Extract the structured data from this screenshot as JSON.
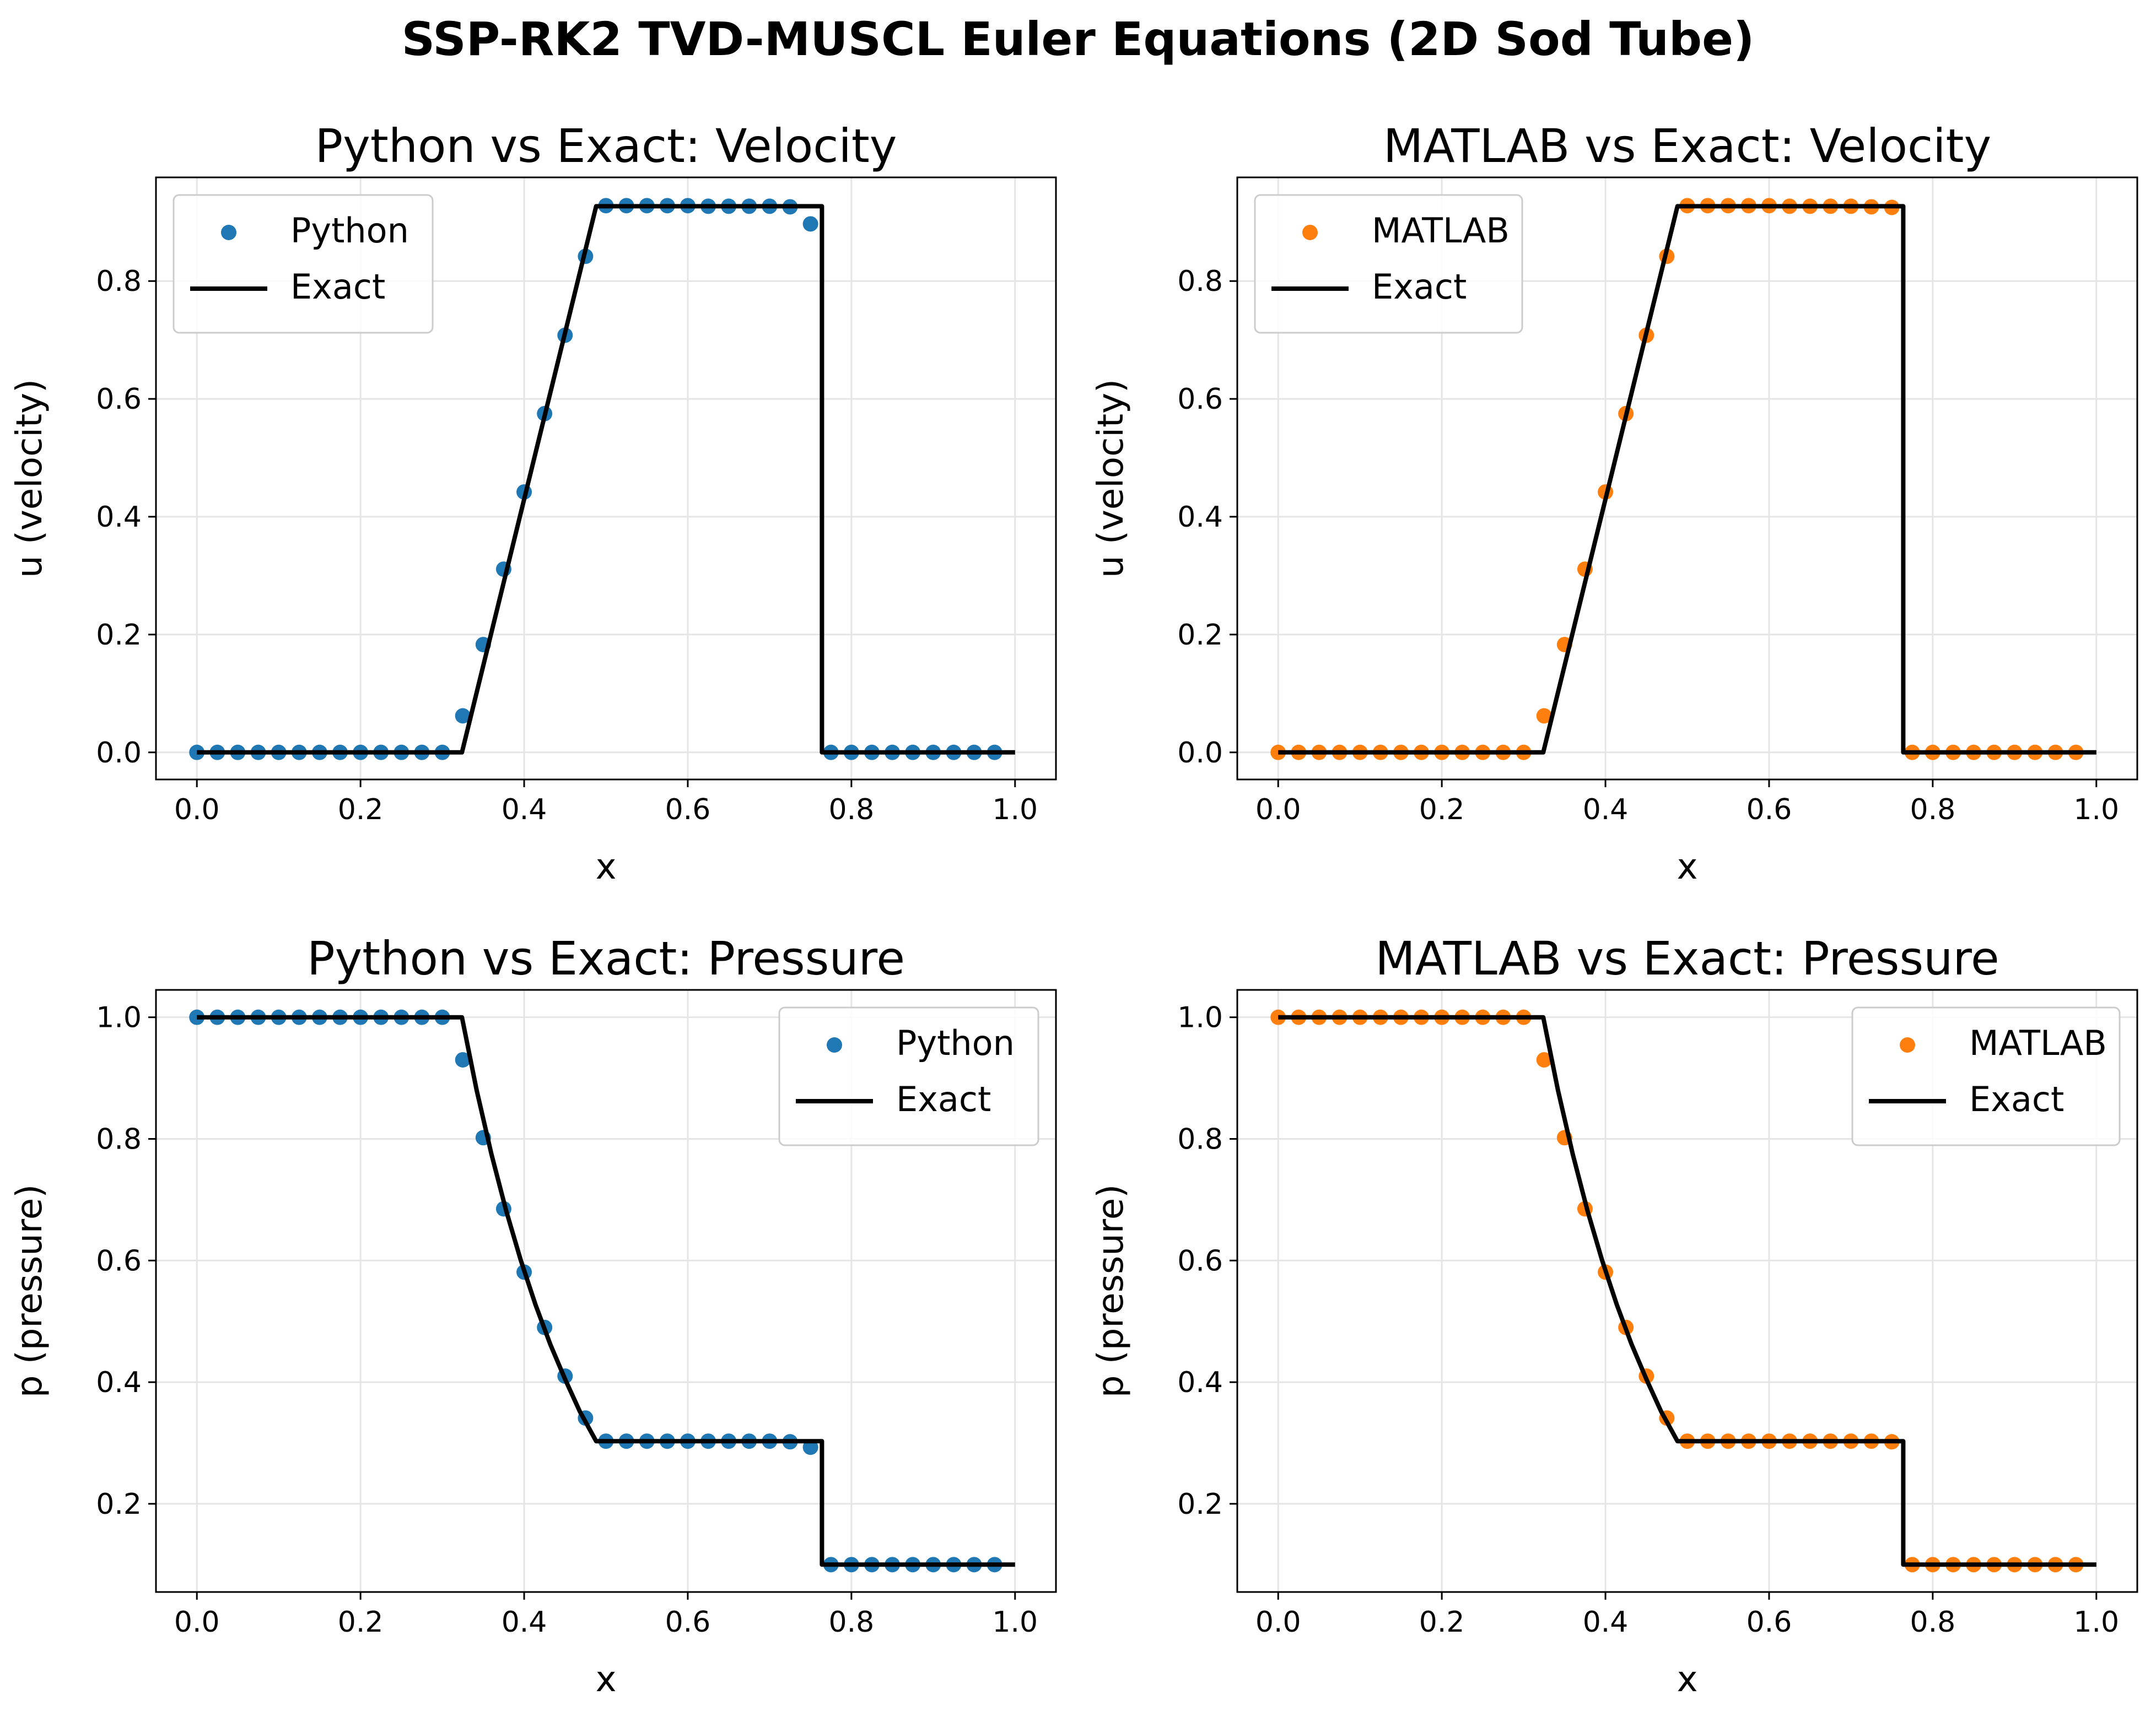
{
  "figure": {
    "title": "SSP-RK2 TVD-MUSCL Euler Equations (2D Sod Tube)"
  },
  "colors": {
    "python": "#1f77b4",
    "matlab": "#ff7f0e",
    "exact": "#000000",
    "grid": "#e5e5e5"
  },
  "chart_data": [
    {
      "type": "scatter",
      "title": "Python vs Exact: Velocity",
      "xlabel": "x",
      "ylabel": "u (velocity)",
      "xlim": [
        -0.05,
        1.05
      ],
      "ylim": [
        -0.046,
        0.976
      ],
      "xticks": [
        "0.0",
        "0.2",
        "0.4",
        "0.6",
        "0.8",
        "1.0"
      ],
      "yticks": [
        "0.0",
        "0.2",
        "0.4",
        "0.6",
        "0.8"
      ],
      "grid": true,
      "legend_position": "upper left",
      "series": [
        {
          "name": "Python",
          "kind": "markers",
          "color": "#1f77b4",
          "x": [
            0.0,
            0.025,
            0.05,
            0.075,
            0.1,
            0.125,
            0.15,
            0.175,
            0.2,
            0.225,
            0.25,
            0.275,
            0.3,
            0.325,
            0.35,
            0.375,
            0.4,
            0.425,
            0.45,
            0.475,
            0.5,
            0.525,
            0.55,
            0.575,
            0.6,
            0.625,
            0.65,
            0.675,
            0.7,
            0.725,
            0.75,
            0.775,
            0.8,
            0.825,
            0.85,
            0.875,
            0.9,
            0.925,
            0.95,
            0.975
          ],
          "y": [
            0,
            0,
            0,
            0,
            0,
            0,
            0,
            0,
            0,
            0,
            0,
            0,
            0,
            0.062,
            0.183,
            0.311,
            0.442,
            0.575,
            0.708,
            0.842,
            0.928,
            0.928,
            0.928,
            0.928,
            0.928,
            0.927,
            0.927,
            0.927,
            0.927,
            0.926,
            0.897,
            0,
            0,
            0,
            0,
            0,
            0,
            0,
            0,
            0
          ]
        },
        {
          "name": "Exact",
          "kind": "line",
          "color": "#000000",
          "x": [
            0.0,
            0.324,
            0.488,
            0.764,
            0.764,
            1.0
          ],
          "y": [
            0,
            0,
            0.927,
            0.927,
            0,
            0
          ]
        }
      ]
    },
    {
      "type": "scatter",
      "title": "MATLAB vs Exact: Velocity",
      "xlabel": "x",
      "ylabel": "u (velocity)",
      "xlim": [
        -0.05,
        1.05
      ],
      "ylim": [
        -0.046,
        0.976
      ],
      "xticks": [
        "0.0",
        "0.2",
        "0.4",
        "0.6",
        "0.8",
        "1.0"
      ],
      "yticks": [
        "0.0",
        "0.2",
        "0.4",
        "0.6",
        "0.8"
      ],
      "grid": true,
      "legend_position": "upper left",
      "series": [
        {
          "name": "MATLAB",
          "kind": "markers",
          "color": "#ff7f0e",
          "x": [
            0.0,
            0.025,
            0.05,
            0.075,
            0.1,
            0.125,
            0.15,
            0.175,
            0.2,
            0.225,
            0.25,
            0.275,
            0.3,
            0.325,
            0.35,
            0.375,
            0.4,
            0.425,
            0.45,
            0.475,
            0.5,
            0.525,
            0.55,
            0.575,
            0.6,
            0.625,
            0.65,
            0.675,
            0.7,
            0.725,
            0.75,
            0.775,
            0.8,
            0.825,
            0.85,
            0.875,
            0.9,
            0.925,
            0.95,
            0.975
          ],
          "y": [
            0,
            0,
            0,
            0,
            0,
            0,
            0,
            0,
            0,
            0,
            0,
            0,
            0,
            0.062,
            0.183,
            0.311,
            0.442,
            0.575,
            0.708,
            0.842,
            0.928,
            0.928,
            0.928,
            0.928,
            0.928,
            0.927,
            0.927,
            0.927,
            0.927,
            0.926,
            0.925,
            0,
            0,
            0,
            0,
            0,
            0,
            0,
            0,
            0
          ]
        },
        {
          "name": "Exact",
          "kind": "line",
          "color": "#000000",
          "x": [
            0.0,
            0.324,
            0.488,
            0.764,
            0.764,
            1.0
          ],
          "y": [
            0,
            0,
            0.927,
            0.927,
            0,
            0
          ]
        }
      ]
    },
    {
      "type": "scatter",
      "title": "Python vs Exact: Pressure",
      "xlabel": "x",
      "ylabel": "p (pressure)",
      "xlim": [
        -0.05,
        1.05
      ],
      "ylim": [
        0.055,
        1.045
      ],
      "xticks": [
        "0.0",
        "0.2",
        "0.4",
        "0.6",
        "0.8",
        "1.0"
      ],
      "yticks": [
        "0.2",
        "0.4",
        "0.6",
        "0.8",
        "1.0"
      ],
      "grid": true,
      "legend_position": "upper right",
      "series": [
        {
          "name": "Python",
          "kind": "markers",
          "color": "#1f77b4",
          "x": [
            0.0,
            0.025,
            0.05,
            0.075,
            0.1,
            0.125,
            0.15,
            0.175,
            0.2,
            0.225,
            0.25,
            0.275,
            0.3,
            0.325,
            0.35,
            0.375,
            0.4,
            0.425,
            0.45,
            0.475,
            0.5,
            0.525,
            0.55,
            0.575,
            0.6,
            0.625,
            0.65,
            0.675,
            0.7,
            0.725,
            0.75,
            0.775,
            0.8,
            0.825,
            0.85,
            0.875,
            0.9,
            0.925,
            0.95,
            0.975
          ],
          "y": [
            1,
            1,
            1,
            1,
            1,
            1,
            1,
            1,
            1,
            1,
            1,
            1,
            1,
            0.93,
            0.802,
            0.685,
            0.581,
            0.49,
            0.41,
            0.341,
            0.303,
            0.303,
            0.303,
            0.303,
            0.303,
            0.303,
            0.303,
            0.303,
            0.303,
            0.302,
            0.293,
            0.1,
            0.1,
            0.1,
            0.1,
            0.1,
            0.1,
            0.1,
            0.1,
            0.1
          ]
        },
        {
          "name": "Exact",
          "kind": "line",
          "color": "#000000",
          "x": [
            0.0,
            0.324,
            0.342,
            0.36,
            0.378,
            0.396,
            0.414,
            0.432,
            0.45,
            0.468,
            0.488,
            0.764,
            0.764,
            1.0
          ],
          "y": [
            1.0,
            1.0,
            0.88,
            0.775,
            0.682,
            0.6,
            0.527,
            0.462,
            0.405,
            0.352,
            0.303,
            0.303,
            0.1,
            0.1
          ]
        }
      ]
    },
    {
      "type": "scatter",
      "title": "MATLAB vs Exact: Pressure",
      "xlabel": "x",
      "ylabel": "p (pressure)",
      "xlim": [
        -0.05,
        1.05
      ],
      "ylim": [
        0.055,
        1.045
      ],
      "xticks": [
        "0.0",
        "0.2",
        "0.4",
        "0.6",
        "0.8",
        "1.0"
      ],
      "yticks": [
        "0.2",
        "0.4",
        "0.6",
        "0.8",
        "1.0"
      ],
      "grid": true,
      "legend_position": "upper right",
      "series": [
        {
          "name": "MATLAB",
          "kind": "markers",
          "color": "#ff7f0e",
          "x": [
            0.0,
            0.025,
            0.05,
            0.075,
            0.1,
            0.125,
            0.15,
            0.175,
            0.2,
            0.225,
            0.25,
            0.275,
            0.3,
            0.325,
            0.35,
            0.375,
            0.4,
            0.425,
            0.45,
            0.475,
            0.5,
            0.525,
            0.55,
            0.575,
            0.6,
            0.625,
            0.65,
            0.675,
            0.7,
            0.725,
            0.75,
            0.775,
            0.8,
            0.825,
            0.85,
            0.875,
            0.9,
            0.925,
            0.95,
            0.975
          ],
          "y": [
            1,
            1,
            1,
            1,
            1,
            1,
            1,
            1,
            1,
            1,
            1,
            1,
            1,
            0.93,
            0.802,
            0.685,
            0.581,
            0.49,
            0.41,
            0.341,
            0.303,
            0.303,
            0.303,
            0.303,
            0.303,
            0.303,
            0.303,
            0.303,
            0.303,
            0.303,
            0.302,
            0.1,
            0.1,
            0.1,
            0.1,
            0.1,
            0.1,
            0.1,
            0.1,
            0.1
          ]
        },
        {
          "name": "Exact",
          "kind": "line",
          "color": "#000000",
          "x": [
            0.0,
            0.324,
            0.342,
            0.36,
            0.378,
            0.396,
            0.414,
            0.432,
            0.45,
            0.468,
            0.488,
            0.764,
            0.764,
            1.0
          ],
          "y": [
            1.0,
            1.0,
            0.88,
            0.775,
            0.682,
            0.6,
            0.527,
            0.462,
            0.405,
            0.352,
            0.303,
            0.303,
            0.1,
            0.1
          ]
        }
      ]
    }
  ]
}
